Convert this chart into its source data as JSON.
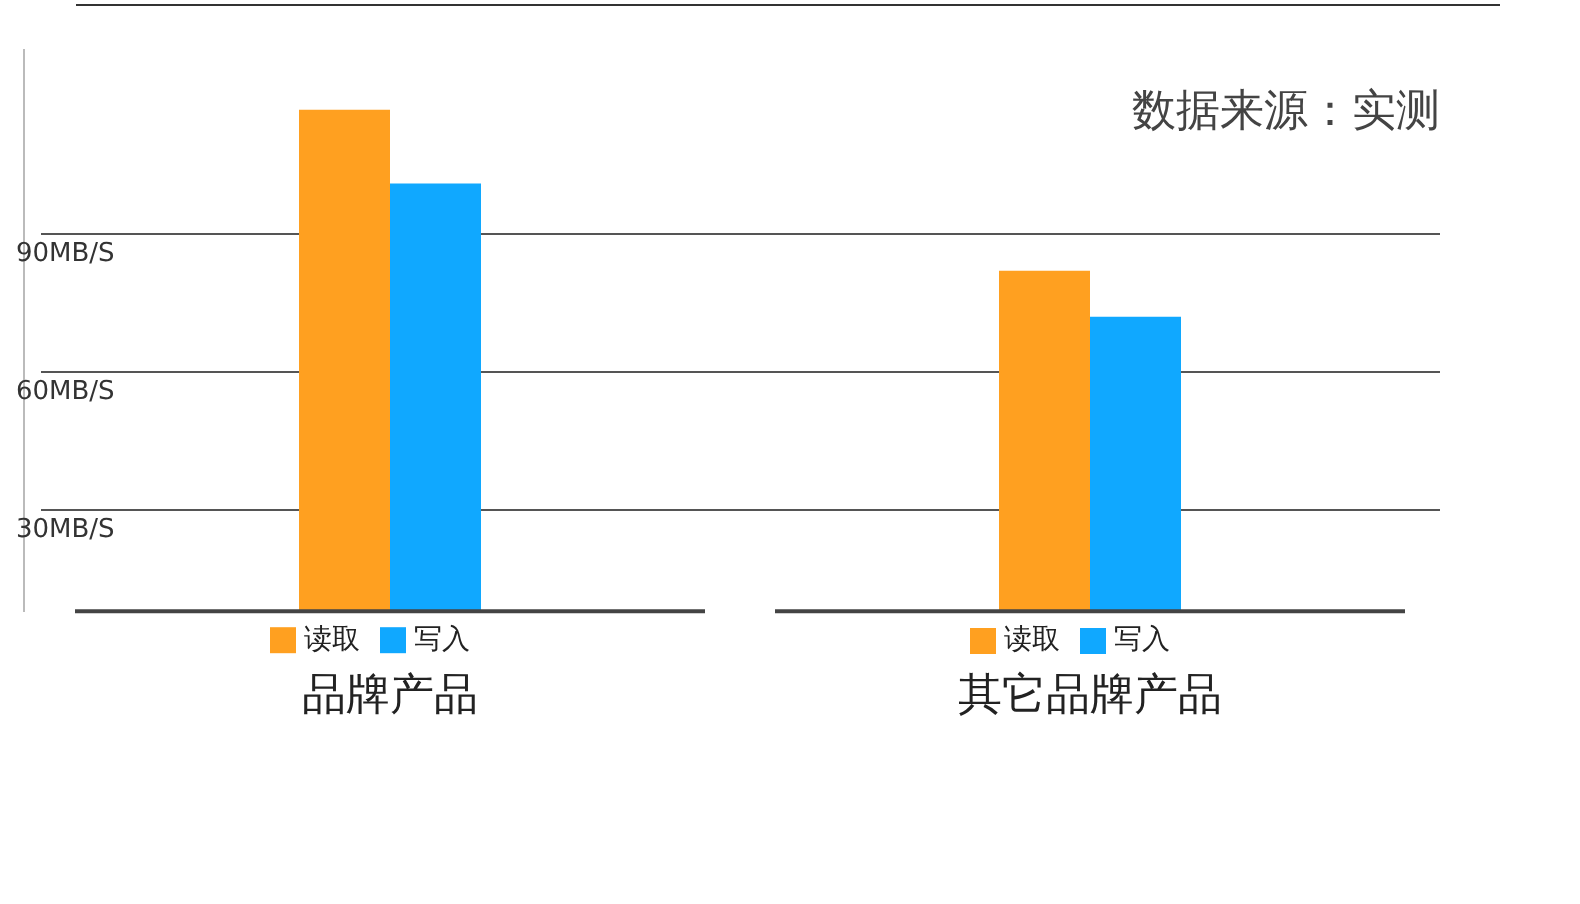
{
  "chart_data": {
    "type": "bar",
    "categories": [
      "品牌产品",
      "其它品牌产品"
    ],
    "series": [
      {
        "name": "读取",
        "color": "#ffa020",
        "values": [
          117,
          82
        ]
      },
      {
        "name": "写入",
        "color": "#10a8ff",
        "values": [
          101,
          72
        ]
      }
    ],
    "ylim": [
      8,
      130
    ],
    "yticks": [
      {
        "value": 30,
        "label": "30MB/S"
      },
      {
        "value": 60,
        "label": "60MB/S"
      },
      {
        "value": 90,
        "label": "90MB/S"
      }
    ],
    "grid": "y",
    "legend": "bottom",
    "annotations": [
      "数据来源：实测"
    ]
  }
}
